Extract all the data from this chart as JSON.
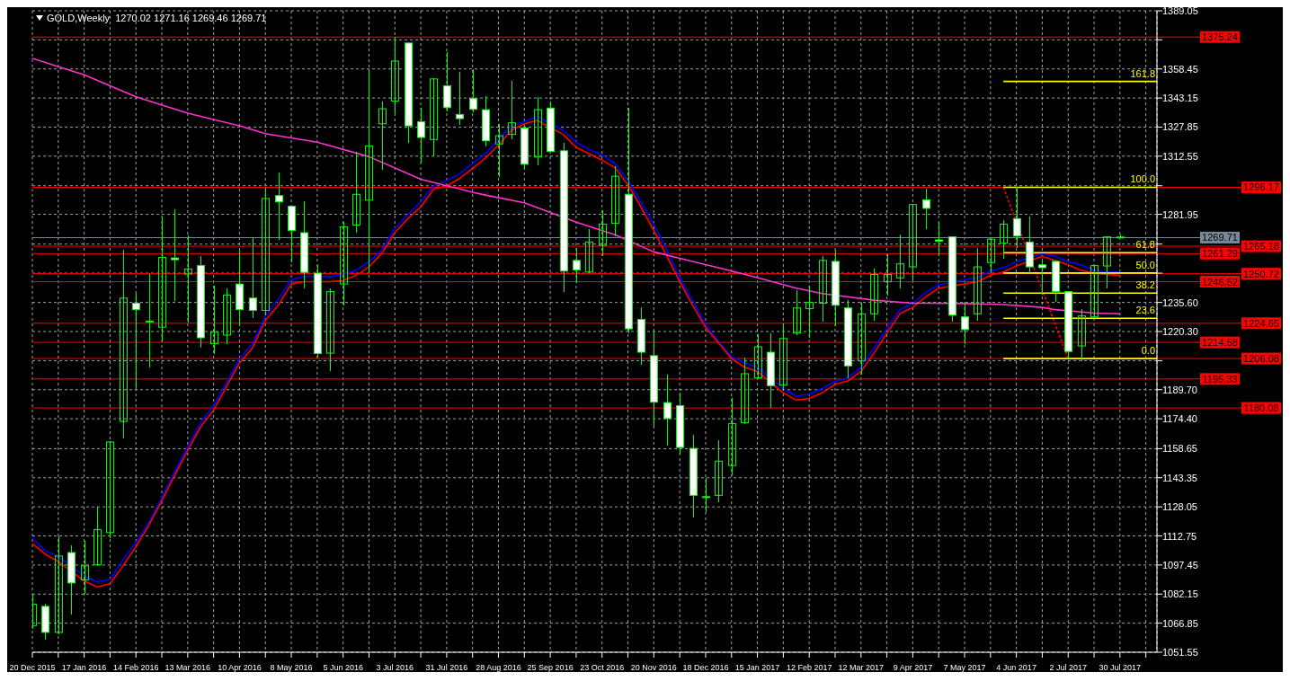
{
  "chart_data": {
    "type": "candlestick",
    "title": "GOLD,Weekly  1270.02 1271.16 1269.46 1269.71",
    "color": "#00ff00",
    "grid": true,
    "x": [
      "2015-12-20",
      "2015-12-27",
      "2016-01-03",
      "2016-01-10",
      "2016-01-17",
      "2016-01-24",
      "2016-01-31",
      "2016-02-07",
      "2016-02-14",
      "2016-02-21",
      "2016-02-28",
      "2016-03-06",
      "2016-03-13",
      "2016-03-20",
      "2016-03-27",
      "2016-04-03",
      "2016-04-10",
      "2016-04-17",
      "2016-04-24",
      "2016-05-01",
      "2016-05-08",
      "2016-05-15",
      "2016-05-22",
      "2016-05-29",
      "2016-06-05",
      "2016-06-12",
      "2016-06-19",
      "2016-06-26",
      "2016-07-03",
      "2016-07-10",
      "2016-07-17",
      "2016-07-24",
      "2016-07-31",
      "2016-08-07",
      "2016-08-14",
      "2016-08-21",
      "2016-08-28",
      "2016-09-04",
      "2016-09-11",
      "2016-09-18",
      "2016-09-25",
      "2016-10-02",
      "2016-10-09",
      "2016-10-16",
      "2016-10-23",
      "2016-10-30",
      "2016-11-06",
      "2016-11-13",
      "2016-11-20",
      "2016-11-27",
      "2016-12-04",
      "2016-12-11",
      "2016-12-18",
      "2016-12-25",
      "2017-01-01",
      "2017-01-08",
      "2017-01-15",
      "2017-01-22",
      "2017-01-29",
      "2017-02-05",
      "2017-02-12",
      "2017-02-19",
      "2017-02-26",
      "2017-03-05",
      "2017-03-12",
      "2017-03-19",
      "2017-03-26",
      "2017-04-02",
      "2017-04-09",
      "2017-04-16",
      "2017-04-23",
      "2017-04-30",
      "2017-05-07",
      "2017-05-14",
      "2017-05-21",
      "2017-05-28",
      "2017-06-04",
      "2017-06-11",
      "2017-06-18",
      "2017-06-25",
      "2017-07-02",
      "2017-07-09",
      "2017-07-16",
      "2017-07-23",
      "2017-07-30"
    ],
    "ohlc": [
      [
        1065.6,
        1081.7,
        1063.8,
        1076.8
      ],
      [
        1075.7,
        1077.2,
        1058.4,
        1062.0
      ],
      [
        1062.0,
        1112.7,
        1061.0,
        1102.2
      ],
      [
        1104.0,
        1107.8,
        1071.2,
        1088.0
      ],
      [
        1089.6,
        1110.1,
        1082.4,
        1097.0
      ],
      [
        1097.5,
        1128.0,
        1097.0,
        1116.1
      ],
      [
        1114.5,
        1162.6,
        1111.6,
        1162.2
      ],
      [
        1173.0,
        1263.3,
        1164.0,
        1237.9
      ],
      [
        1235.2,
        1240.4,
        1190.3,
        1231.8
      ],
      [
        1225.4,
        1250.5,
        1201.5,
        1225.8
      ],
      [
        1222.6,
        1280.2,
        1215.0,
        1259.3
      ],
      [
        1259.0,
        1284.7,
        1236.3,
        1258.1
      ],
      [
        1250.5,
        1271.0,
        1225.1,
        1253.2
      ],
      [
        1255.0,
        1259.9,
        1211.6,
        1217.0
      ],
      [
        1213.9,
        1244.2,
        1208.3,
        1219.9
      ],
      [
        1218.4,
        1243.1,
        1213.9,
        1239.5
      ],
      [
        1245.3,
        1263.3,
        1223.3,
        1231.8
      ],
      [
        1237.9,
        1270.1,
        1227.4,
        1231.4
      ],
      [
        1231.4,
        1295.9,
        1229.0,
        1290.3
      ],
      [
        1291.8,
        1303.8,
        1268.3,
        1288.5
      ],
      [
        1286.2,
        1286.5,
        1256.6,
        1273.4
      ],
      [
        1272.3,
        1288.7,
        1243.1,
        1251.4
      ],
      [
        1251.0,
        1255.4,
        1206.5,
        1208.7
      ],
      [
        1208.9,
        1243.1,
        1199.7,
        1241.3
      ],
      [
        1245.3,
        1277.9,
        1234.1,
        1275.4
      ],
      [
        1276.3,
        1315.0,
        1272.3,
        1292.5
      ],
      [
        1289.4,
        1358.1,
        1251.0,
        1317.9
      ],
      [
        1329.6,
        1341.5,
        1305.3,
        1337.5
      ],
      [
        1341.5,
        1375.24,
        1334.5,
        1362.6
      ],
      [
        1372.1,
        1372.5,
        1319.5,
        1328.5
      ],
      [
        1330.7,
        1338.1,
        1309.4,
        1322.4
      ],
      [
        1321.3,
        1353.5,
        1312.3,
        1353.2
      ],
      [
        1349.6,
        1367.1,
        1336.3,
        1338.1
      ],
      [
        1334.5,
        1357.0,
        1329.2,
        1332.3
      ],
      [
        1342.9,
        1358.1,
        1335.7,
        1337.2
      ],
      [
        1337.0,
        1344.2,
        1317.7,
        1320.6
      ],
      [
        1319.0,
        1329.6,
        1301.5,
        1323.3
      ],
      [
        1324.0,
        1352.1,
        1321.3,
        1330.1
      ],
      [
        1327.4,
        1327.7,
        1306.0,
        1308.3
      ],
      [
        1312.1,
        1343.5,
        1307.6,
        1337.0
      ],
      [
        1337.9,
        1341.5,
        1314.8,
        1315.0
      ],
      [
        1315.4,
        1319.5,
        1241.3,
        1252.1
      ],
      [
        1257.7,
        1264.4,
        1245.8,
        1252.7
      ],
      [
        1251.6,
        1274.1,
        1250.9,
        1267.4
      ],
      [
        1265.6,
        1284.0,
        1259.9,
        1276.8
      ],
      [
        1277.2,
        1307.1,
        1270.5,
        1302.0
      ],
      [
        1292.5,
        1337.9,
        1219.5,
        1221.7
      ],
      [
        1226.7,
        1233.0,
        1202.6,
        1209.4
      ],
      [
        1207.6,
        1220.6,
        1170.1,
        1183.1
      ],
      [
        1182.9,
        1197.7,
        1160.4,
        1174.5
      ],
      [
        1181.3,
        1188.0,
        1155.9,
        1159.3
      ],
      [
        1158.8,
        1166.0,
        1122.4,
        1134.1
      ],
      [
        1133.4,
        1143.1,
        1125.1,
        1133.0
      ],
      [
        1134.1,
        1163.3,
        1130.7,
        1152.1
      ],
      [
        1149.8,
        1185.1,
        1144.9,
        1171.8
      ],
      [
        1172.3,
        1206.7,
        1171.6,
        1198.1
      ],
      [
        1195.9,
        1218.8,
        1195.4,
        1212.3
      ],
      [
        1209.4,
        1219.5,
        1180.2,
        1191.8
      ],
      [
        1192.1,
        1224.7,
        1189.6,
        1216.6
      ],
      [
        1219.5,
        1242.0,
        1218.4,
        1232.7
      ],
      [
        1232.3,
        1244.2,
        1217.2,
        1235.7
      ],
      [
        1235.2,
        1259.9,
        1225.6,
        1257.7
      ],
      [
        1257.2,
        1263.3,
        1223.3,
        1234.1
      ],
      [
        1232.7,
        1236.8,
        1195.9,
        1202.2
      ],
      [
        1204.9,
        1235.2,
        1197.7,
        1229.6
      ],
      [
        1229.6,
        1253.2,
        1226.2,
        1250.3
      ],
      [
        1246.5,
        1261.1,
        1239.0,
        1250.3
      ],
      [
        1248.5,
        1271.2,
        1243.1,
        1255.9
      ],
      [
        1254.3,
        1287.5,
        1247.1,
        1287.1
      ],
      [
        1289.6,
        1295.4,
        1274.1,
        1285.1
      ],
      [
        1268.5,
        1277.9,
        1259.9,
        1267.8
      ],
      [
        1270.1,
        1270.5,
        1225.6,
        1228.9
      ],
      [
        1228.0,
        1235.2,
        1213.9,
        1221.3
      ],
      [
        1229.6,
        1264.4,
        1226.2,
        1254.3
      ],
      [
        1256.6,
        1269.3,
        1251.0,
        1268.9
      ],
      [
        1266.7,
        1279.0,
        1258.8,
        1276.8
      ],
      [
        1279.7,
        1296.17,
        1264.4,
        1270.5
      ],
      [
        1267.4,
        1280.8,
        1251.0,
        1254.3
      ],
      [
        1255.4,
        1257.7,
        1239.7,
        1253.9
      ],
      [
        1257.2,
        1257.5,
        1235.9,
        1241.3
      ],
      [
        1241.3,
        1241.6,
        1206.08,
        1209.8
      ],
      [
        1212.7,
        1232.3,
        1204.9,
        1228.5
      ],
      [
        1228.0,
        1255.4,
        1227.6,
        1255.0
      ],
      [
        1254.8,
        1270.4,
        1243.1,
        1270.1
      ],
      [
        1270.02,
        1271.16,
        1269.46,
        1269.71
      ]
    ],
    "series": [
      {
        "type": "line",
        "color": "#0000ff",
        "x": [
          "2015-12-20",
          "2015-12-27",
          "2016-01-03",
          "2016-01-17",
          "2016-01-24",
          "2016-01-31",
          "2016-02-07",
          "2016-02-14",
          "2016-02-21",
          "2016-02-28",
          "2016-03-06",
          "2016-03-13",
          "2016-03-20",
          "2016-03-27",
          "2016-04-03",
          "2016-04-10",
          "2016-04-17",
          "2016-04-24",
          "2016-05-01",
          "2016-05-08",
          "2016-05-15",
          "2016-05-29",
          "2016-06-05",
          "2016-06-12",
          "2016-06-19",
          "2016-06-26",
          "2016-07-03",
          "2016-07-10",
          "2016-07-17",
          "2016-07-24",
          "2016-07-31",
          "2016-08-07",
          "2016-08-14",
          "2016-08-21",
          "2016-08-28",
          "2016-09-04",
          "2016-09-11",
          "2016-09-18",
          "2016-10-02",
          "2016-10-09",
          "2016-10-16",
          "2016-10-23",
          "2016-10-30",
          "2016-11-06",
          "2016-11-13",
          "2016-11-20",
          "2016-11-27",
          "2016-12-04",
          "2016-12-11",
          "2016-12-18",
          "2016-12-25",
          "2017-01-01",
          "2017-01-08",
          "2017-01-15",
          "2017-01-29",
          "2017-02-05",
          "2017-02-12",
          "2017-02-19",
          "2017-02-26",
          "2017-03-05",
          "2017-03-12",
          "2017-03-19",
          "2017-03-26",
          "2017-04-02",
          "2017-04-09",
          "2017-04-16",
          "2017-04-23",
          "2017-05-07",
          "2017-05-14",
          "2017-05-21",
          "2017-05-28",
          "2017-06-04",
          "2017-06-18",
          "2017-06-25",
          "2017-07-02",
          "2017-07-09",
          "2017-07-16",
          "2017-07-23",
          "2017-07-30"
        ],
        "values": [
          1111.6,
          1104.9,
          1102.0,
          1091.8,
          1088.5,
          1089.8,
          1100.2,
          1109.4,
          1119.9,
          1133.0,
          1146.5,
          1159.9,
          1172.3,
          1181.3,
          1193.6,
          1206.0,
          1213.9,
          1228.5,
          1237.5,
          1247.6,
          1249.4,
          1249.2,
          1250.5,
          1252.5,
          1257.0,
          1263.3,
          1274.5,
          1282.0,
          1288.5,
          1297.0,
          1299.7,
          1303.3,
          1308.7,
          1313.9,
          1321.3,
          1328.5,
          1330.7,
          1333.4,
          1326.2,
          1319.9,
          1316.1,
          1313.2,
          1308.7,
          1299.7,
          1288.5,
          1276.8,
          1263.3,
          1248.7,
          1236.4,
          1224.0,
          1215.0,
          1207.1,
          1203.8,
          1201.5,
          1190.3,
          1186.4,
          1187.3,
          1190.3,
          1194.1,
          1195.9,
          1201.5,
          1211.6,
          1221.7,
          1231.8,
          1235.2,
          1240.8,
          1244.9,
          1247.6,
          1248.7,
          1252.1,
          1253.9,
          1257.0,
          1261.1,
          1259.9,
          1257.0,
          1255.4,
          1252.5,
          1251.6,
          1251.6
        ]
      },
      {
        "type": "line",
        "color": "#ff0000",
        "x": [
          "2015-12-20",
          "2015-12-27",
          "2016-01-03",
          "2016-01-17",
          "2016-01-24",
          "2016-01-31",
          "2016-02-07",
          "2016-02-14",
          "2016-02-21",
          "2016-02-28",
          "2016-03-06",
          "2016-03-13",
          "2016-03-20",
          "2016-03-27",
          "2016-04-03",
          "2016-04-10",
          "2016-04-17",
          "2016-04-24",
          "2016-05-01",
          "2016-05-08",
          "2016-05-15",
          "2016-05-29",
          "2016-06-05",
          "2016-06-12",
          "2016-06-19",
          "2016-06-26",
          "2016-07-03",
          "2016-07-10",
          "2016-07-17",
          "2016-07-24",
          "2016-07-31",
          "2016-08-07",
          "2016-08-14",
          "2016-08-21",
          "2016-08-28",
          "2016-09-04",
          "2016-09-11",
          "2016-09-18",
          "2016-10-02",
          "2016-10-09",
          "2016-10-16",
          "2016-10-23",
          "2016-10-30",
          "2016-11-06",
          "2016-11-13",
          "2016-11-20",
          "2016-11-27",
          "2016-12-04",
          "2016-12-11",
          "2016-12-18",
          "2016-12-25",
          "2017-01-01",
          "2017-01-08",
          "2017-01-15",
          "2017-01-29",
          "2017-02-05",
          "2017-02-12",
          "2017-02-19",
          "2017-02-26",
          "2017-03-05",
          "2017-03-12",
          "2017-03-19",
          "2017-03-26",
          "2017-04-02",
          "2017-04-09",
          "2017-04-16",
          "2017-04-23",
          "2017-05-07",
          "2017-05-14",
          "2017-05-21",
          "2017-05-28",
          "2017-06-04",
          "2017-06-18",
          "2017-07-02",
          "2017-07-09",
          "2017-07-16",
          "2017-07-23",
          "2017-07-30"
        ],
        "values": [
          1108.7,
          1103.1,
          1099.3,
          1089.1,
          1085.8,
          1087.6,
          1097.0,
          1107.1,
          1118.4,
          1131.2,
          1144.7,
          1157.7,
          1170.1,
          1179.0,
          1191.4,
          1203.8,
          1211.6,
          1226.2,
          1234.1,
          1245.3,
          1246.5,
          1246.5,
          1247.1,
          1249.8,
          1254.3,
          1261.5,
          1272.3,
          1279.7,
          1285.8,
          1295.2,
          1297.0,
          1300.8,
          1306.0,
          1311.6,
          1318.4,
          1326.2,
          1329.6,
          1331.4,
          1324.0,
          1317.2,
          1313.9,
          1310.5,
          1306.5,
          1297.5,
          1285.8,
          1273.4,
          1259.9,
          1246.5,
          1234.1,
          1222.4,
          1214.3,
          1206.0,
          1201.5,
          1199.3,
          1188.0,
          1184.2,
          1185.1,
          1188.0,
          1192.5,
          1194.3,
          1199.3,
          1208.9,
          1219.5,
          1229.6,
          1233.0,
          1238.6,
          1243.1,
          1245.3,
          1246.5,
          1249.8,
          1251.6,
          1254.8,
          1259.9,
          1255.4,
          1252.5,
          1251.0,
          1250.3,
          1249.8
        ]
      },
      {
        "type": "line",
        "color": "#ff33cc",
        "x": [
          "2015-12-20",
          "2016-01-17",
          "2016-02-14",
          "2016-03-13",
          "2016-04-10",
          "2016-04-24",
          "2016-05-22",
          "2016-06-19",
          "2016-07-17",
          "2016-07-31",
          "2016-08-14",
          "2016-08-21",
          "2016-09-11",
          "2016-10-09",
          "2016-10-30",
          "2016-11-20",
          "2016-12-04",
          "2016-12-25",
          "2017-01-15",
          "2017-02-05",
          "2017-02-19",
          "2017-03-19",
          "2017-04-09",
          "2017-04-23",
          "2017-05-07",
          "2017-05-28",
          "2017-06-18",
          "2017-06-25",
          "2017-07-16",
          "2017-07-30"
        ],
        "values": [
          1364.0,
          1355.4,
          1343.8,
          1335.2,
          1328.5,
          1324.4,
          1319.9,
          1312.3,
          1300.4,
          1297.0,
          1293.6,
          1292.1,
          1288.0,
          1277.9,
          1271.2,
          1262.2,
          1258.8,
          1253.9,
          1248.7,
          1243.1,
          1240.3,
          1236.8,
          1235.2,
          1235.2,
          1235.0,
          1234.5,
          1233.0,
          1231.8,
          1230.0,
          1229.6
        ]
      },
      {
        "type": "line",
        "color": "#ff0000",
        "line_style": "dotted",
        "x": [
          "2017-05-28",
          "2017-07-02"
        ],
        "values": [
          1296.17,
          1206.08
        ]
      },
      {
        "type": "line",
        "name": "161.8",
        "color": "#ffff00",
        "x": [
          "2017-05-28",
          "2017-08-19"
        ],
        "values": [
          1351.9,
          1351.9
        ]
      },
      {
        "type": "line",
        "name": "100.0",
        "color": "#ffff00",
        "x": [
          "2017-05-28",
          "2017-08-19"
        ],
        "values": [
          1296.17,
          1296.17
        ]
      },
      {
        "type": "line",
        "name": "61.8",
        "color": "#ffff00",
        "x": [
          "2017-05-28",
          "2017-08-19"
        ],
        "values": [
          1261.8,
          1261.8
        ]
      },
      {
        "type": "line",
        "name": "50.0",
        "color": "#ffff00",
        "x": [
          "2017-05-28",
          "2017-08-19"
        ],
        "values": [
          1251.1,
          1251.1
        ]
      },
      {
        "type": "line",
        "name": "38.2",
        "color": "#ffff00",
        "x": [
          "2017-05-28",
          "2017-08-19"
        ],
        "values": [
          1240.5,
          1240.5
        ]
      },
      {
        "type": "line",
        "name": "23.6",
        "color": "#ffff00",
        "x": [
          "2017-05-28",
          "2017-08-19"
        ],
        "values": [
          1227.3,
          1227.3
        ]
      },
      {
        "type": "line",
        "name": "0.0",
        "color": "#ffff00",
        "x": [
          "2017-05-28",
          "2017-08-19"
        ],
        "values": [
          1206.08,
          1206.08
        ]
      }
    ],
    "ref_lines": [
      {
        "axis": "y",
        "value": 1375.24,
        "label": "1375.24",
        "color": "#ff0000"
      },
      {
        "axis": "y",
        "value": 1296.17,
        "label": "1296.17",
        "color": "#ff0000"
      },
      {
        "axis": "y",
        "value": 1269.71,
        "label": "1269.71",
        "color": "#778899"
      },
      {
        "axis": "y",
        "value": 1265.18,
        "label": "1265.18",
        "color": "#ff0000"
      },
      {
        "axis": "y",
        "value": 1261.29,
        "label": "1261.29",
        "color": "#ff0000"
      },
      {
        "axis": "y",
        "value": 1250.72,
        "label": "1250.72",
        "color": "#ff0000"
      },
      {
        "axis": "y",
        "value": 1246.52,
        "label": "1246.52",
        "color": "#ff0000"
      },
      {
        "axis": "y",
        "value": 1224.65,
        "label": "1224.65",
        "color": "#ff0000"
      },
      {
        "axis": "y",
        "value": 1214.58,
        "label": "1214.58",
        "color": "#ff0000"
      },
      {
        "axis": "y",
        "value": 1206.08,
        "label": "1206.08",
        "color": "#ff0000"
      },
      {
        "axis": "y",
        "value": 1195.33,
        "label": "1195.33",
        "color": "#ff0000"
      },
      {
        "axis": "y",
        "value": 1180.08,
        "label": "1180.08",
        "color": "#ff0000"
      }
    ],
    "xlim": [
      "2015-12-20",
      "2017-08-19"
    ],
    "xticks": [
      {
        "value": "2015-12-20",
        "label": "20 Dec 2015"
      },
      {
        "value": "2016-01-03",
        "label": null
      },
      {
        "value": "2016-01-17",
        "label": "17 Jan 2016"
      },
      {
        "value": "2016-01-31",
        "label": null
      },
      {
        "value": "2016-02-14",
        "label": "14 Feb 2016"
      },
      {
        "value": "2016-02-28",
        "label": null
      },
      {
        "value": "2016-03-13",
        "label": "13 Mar 2016"
      },
      {
        "value": "2016-03-27",
        "label": null
      },
      {
        "value": "2016-04-10",
        "label": "10 Apr 2016"
      },
      {
        "value": "2016-04-24",
        "label": null
      },
      {
        "value": "2016-05-08",
        "label": "8 May 2016"
      },
      {
        "value": "2016-05-22",
        "label": null
      },
      {
        "value": "2016-06-05",
        "label": "5 Jun 2016"
      },
      {
        "value": "2016-06-19",
        "label": null
      },
      {
        "value": "2016-07-03",
        "label": "3 Jul 2016"
      },
      {
        "value": "2016-07-17",
        "label": null
      },
      {
        "value": "2016-07-31",
        "label": "31 Jul 2016"
      },
      {
        "value": "2016-08-14",
        "label": null
      },
      {
        "value": "2016-08-28",
        "label": "28 Aug 2016"
      },
      {
        "value": "2016-09-11",
        "label": null
      },
      {
        "value": "2016-09-25",
        "label": "25 Sep 2016"
      },
      {
        "value": "2016-10-09",
        "label": null
      },
      {
        "value": "2016-10-23",
        "label": "23 Oct 2016"
      },
      {
        "value": "2016-11-06",
        "label": null
      },
      {
        "value": "2016-11-20",
        "label": "20 Nov 2016"
      },
      {
        "value": "2016-12-04",
        "label": null
      },
      {
        "value": "2016-12-18",
        "label": "18 Dec 2016"
      },
      {
        "value": "2017-01-01",
        "label": null
      },
      {
        "value": "2017-01-15",
        "label": "15 Jan 2017"
      },
      {
        "value": "2017-01-29",
        "label": null
      },
      {
        "value": "2017-02-12",
        "label": "12 Feb 2017"
      },
      {
        "value": "2017-02-26",
        "label": null
      },
      {
        "value": "2017-03-12",
        "label": "12 Mar 2017"
      },
      {
        "value": "2017-03-26",
        "label": null
      },
      {
        "value": "2017-04-09",
        "label": "9 Apr 2017"
      },
      {
        "value": "2017-04-23",
        "label": null
      },
      {
        "value": "2017-05-07",
        "label": "7 May 2017"
      },
      {
        "value": "2017-05-21",
        "label": null
      },
      {
        "value": "2017-06-04",
        "label": "4 Jun 2017"
      },
      {
        "value": "2017-06-18",
        "label": null
      },
      {
        "value": "2017-07-02",
        "label": "2 Jul 2017"
      },
      {
        "value": "2017-07-16",
        "label": null
      },
      {
        "value": "2017-07-30",
        "label": "30 Jul 2017"
      },
      {
        "value": "2017-08-13",
        "label": null
      }
    ],
    "ylim": [
      1051.55,
      1389.05
    ],
    "yticks": [
      1389.05,
      {
        "value": 1373.75,
        "label": null
      },
      1358.45,
      1343.15,
      1327.85,
      1312.55,
      {
        "value": 1297.0,
        "label": null
      },
      1281.95,
      {
        "value": 1266.3,
        "label": null
      },
      {
        "value": 1251.0,
        "label": null
      },
      {
        "value": 1235.6,
        "label": "1235.60"
      },
      {
        "value": 1220.3,
        "label": "1220.30"
      },
      {
        "value": 1204.9,
        "label": null
      },
      {
        "value": 1189.7,
        "label": "1189.70"
      },
      {
        "value": 1174.4,
        "label": "1174.40"
      },
      1158.65,
      1143.35,
      1128.05,
      1112.75,
      1097.45,
      1082.15,
      1066.85,
      1051.55
    ]
  }
}
